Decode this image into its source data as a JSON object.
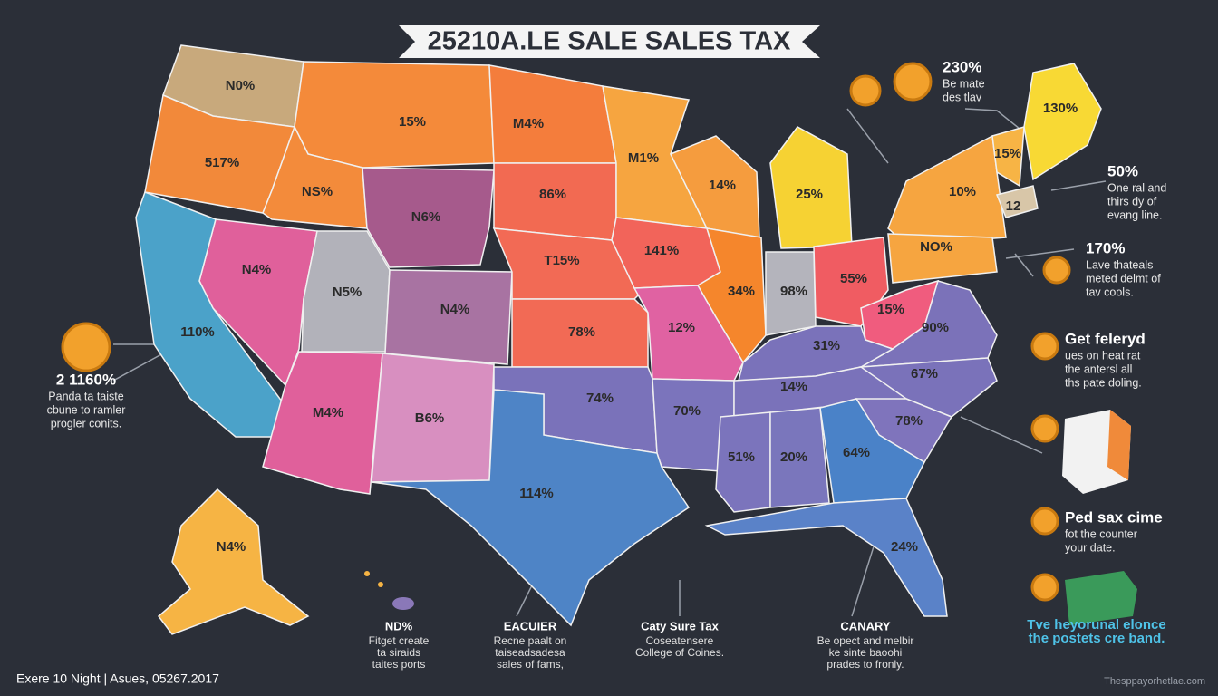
{
  "title": "25210A.LE SALE SALES TAX",
  "states": [
    {
      "label": "N0%",
      "color": "#c8a97c"
    },
    {
      "label": "517%",
      "color": "#f2893a"
    },
    {
      "label": "15%",
      "color": "#f48a3a"
    },
    {
      "label": "NS%",
      "color": "#f38b3b"
    },
    {
      "label": "M4%",
      "color": "#f47d3c"
    },
    {
      "label": "N6%",
      "color": "#a65a8c"
    },
    {
      "label": "86%",
      "color": "#f26a52"
    },
    {
      "label": "M1%",
      "color": "#f6a540"
    },
    {
      "label": "14%",
      "color": "#f59c3e"
    },
    {
      "label": "25%",
      "color": "#f6d233"
    },
    {
      "label": "10%",
      "color": "#f6a540"
    },
    {
      "label": "15%",
      "color": "#f7b445"
    },
    {
      "label": "130%",
      "color": "#f8d934"
    },
    {
      "label": "NO%",
      "color": "#f6a540"
    },
    {
      "label": "N4%",
      "color": "#e0609b"
    },
    {
      "label": "N5%",
      "color": "#b2b2ba"
    },
    {
      "label": "N4%",
      "color": "#a873a2"
    },
    {
      "label": "T15%",
      "color": "#f26a55"
    },
    {
      "label": "141%",
      "color": "#f2645a"
    },
    {
      "label": "34%",
      "color": "#f5862c"
    },
    {
      "label": "98%",
      "color": "#b4b4bc"
    },
    {
      "label": "55%",
      "color": "#f05c62"
    },
    {
      "label": "110%",
      "color": "#4ba2c9"
    },
    {
      "label": "78%",
      "color": "#f26a55"
    },
    {
      "label": "12%",
      "color": "#e062a2"
    },
    {
      "label": "15%",
      "color": "#f05c7e"
    },
    {
      "label": "90%",
      "color": "#7b72b9"
    },
    {
      "label": "31%",
      "color": "#7a72ba"
    },
    {
      "label": "M4%",
      "color": "#e0609b"
    },
    {
      "label": "B6%",
      "color": "#d88fc0"
    },
    {
      "label": "74%",
      "color": "#7a72ba"
    },
    {
      "label": "70%",
      "color": "#7b74bc"
    },
    {
      "label": "14%",
      "color": "#7a72ba"
    },
    {
      "label": "67%",
      "color": "#7a72ba"
    },
    {
      "label": "78%",
      "color": "#7f74bc"
    },
    {
      "label": "51%",
      "color": "#7b74bc"
    },
    {
      "label": "20%",
      "color": "#7a76bc"
    },
    {
      "label": "64%",
      "color": "#4a82c8"
    },
    {
      "label": "114%",
      "color": "#4e84c6"
    },
    {
      "label": "24%",
      "color": "#5a82c8"
    },
    {
      "label": "N4%",
      "color": "#f6b444"
    },
    {
      "label": "12",
      "color": "#d8c6a8"
    }
  ],
  "callouts": [
    {
      "heading": "230%",
      "lines": [
        "Be mate",
        "des tlav"
      ]
    },
    {
      "heading": "50%",
      "lines": [
        "One ral and",
        "thirs dy of",
        "evang line."
      ]
    },
    {
      "heading": "170%",
      "lines": [
        "Lave thateals",
        "meted delmt of",
        "tav cools."
      ]
    },
    {
      "heading": "Get feleryd",
      "lines": [
        "ues on heat rat",
        "the antersl all",
        "ths pate doling."
      ]
    },
    {
      "heading": "Ped sax cime",
      "lines": [
        "fot the counter",
        "your date."
      ]
    },
    {
      "lines": [
        "Tve heyorunal elonce",
        "the postets cre band."
      ]
    },
    {
      "heading": "2 1160%",
      "lines": [
        "Panda ta taiste",
        "cbune to ramler",
        "progler conits."
      ]
    }
  ],
  "bottom_notes": [
    {
      "heading": "ND%",
      "lines": [
        "Fitget create",
        "ta siraids",
        "taites ports"
      ]
    },
    {
      "heading": "EACUIER",
      "lines": [
        "Recne paalt on",
        "taiseadsadesa",
        "sales of fams,"
      ]
    },
    {
      "heading": "Caty Sure Tax",
      "lines": [
        "Coseatensere",
        "College of Coines."
      ]
    },
    {
      "heading": "CANARY",
      "lines": [
        "Be opect and melbir",
        "ke sinte baoohi",
        "prades to fronly."
      ]
    }
  ],
  "footer": {
    "left": "Exere 10 Night | Asues, 05267.2017",
    "right": "Thesppayorhetlae.com"
  }
}
